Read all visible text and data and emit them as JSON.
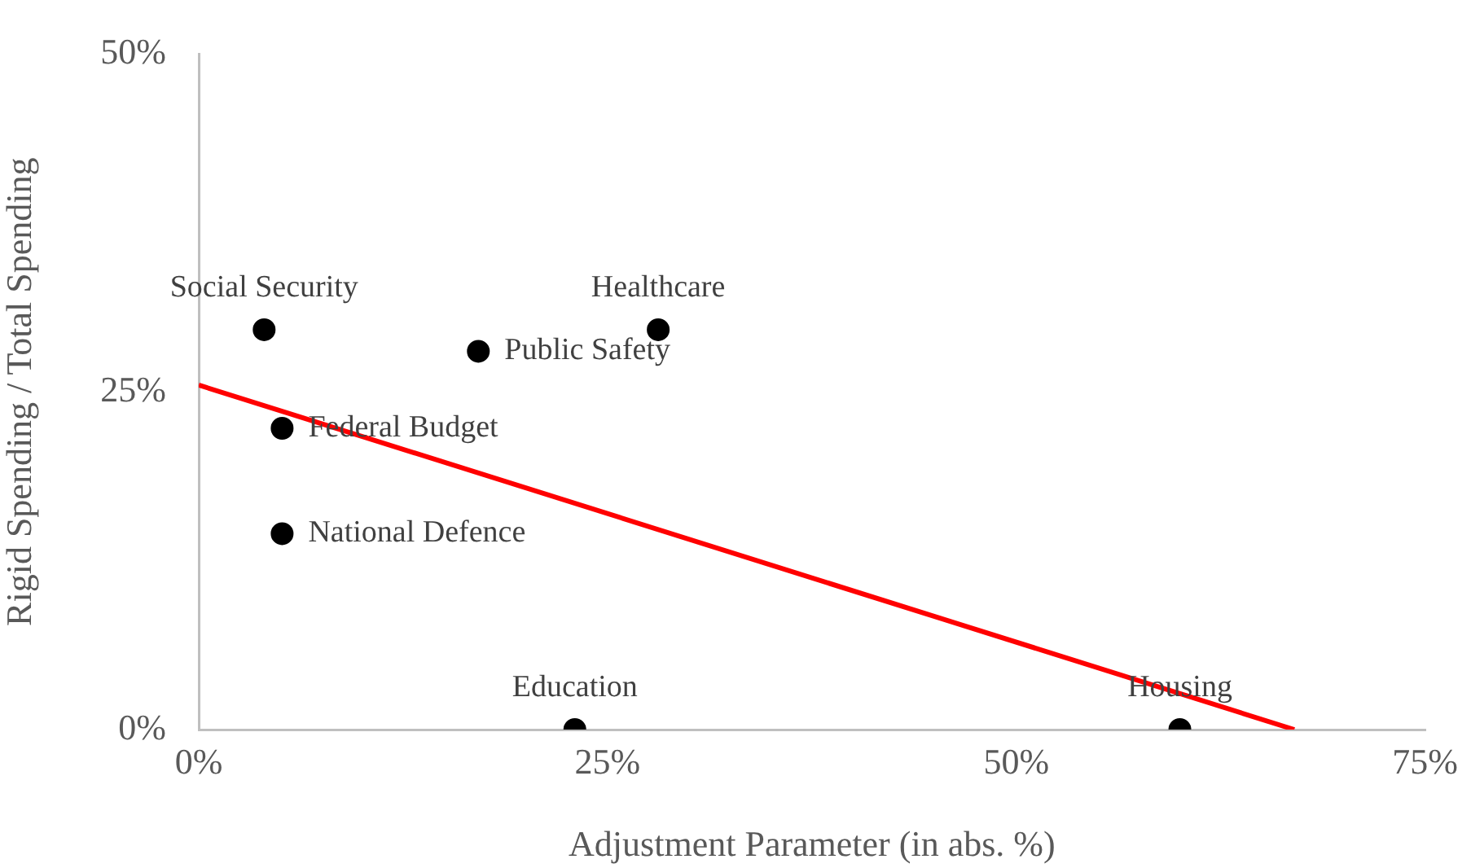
{
  "chart_data": {
    "type": "scatter",
    "xlabel": "Adjustment Parameter (in abs. %)",
    "ylabel": "Rigid Spending / Total Spending",
    "series": [
      {
        "color": "#000000",
        "marker": "circle",
        "x": [
          4,
          28.1,
          17.1,
          5.1,
          5.1,
          23,
          60
        ],
        "values": [
          29.6,
          29.6,
          28,
          22.3,
          14.5,
          0,
          0
        ]
      },
      {
        "type": "line",
        "marker": "none",
        "color": "#ff0000",
        "x": [
          0,
          67
        ],
        "values": [
          25.5,
          0
        ]
      }
    ],
    "annotations": [
      {
        "text": "Social Security",
        "x": 4,
        "y": 29.6
      },
      {
        "text": "Healthcare",
        "x": 28.1,
        "y": 29.6
      },
      {
        "text": "Public Safety",
        "x": 17.1,
        "y": 28
      },
      {
        "text": "Federal Budget",
        "x": 5.1,
        "y": 22.3
      },
      {
        "text": "National Defence",
        "x": 5.1,
        "y": 14.5
      },
      {
        "text": "Education",
        "x": 23,
        "y": 0
      },
      {
        "text": "Housing",
        "x": 60,
        "y": 0
      }
    ],
    "xlim": [
      0,
      75
    ],
    "xticks": [
      {
        "value": 0,
        "label": "0%"
      },
      {
        "value": 25,
        "label": "25%"
      },
      {
        "value": 50,
        "label": "50%"
      },
      {
        "value": 75,
        "label": "75%"
      }
    ],
    "ylim": [
      0,
      50
    ],
    "yticks": [
      {
        "value": 0,
        "label": "0%"
      },
      {
        "value": 25,
        "label": "25%"
      },
      {
        "value": 50,
        "label": "50%"
      }
    ],
    "grid": false,
    "legend": false,
    "line_style": "solid"
  }
}
